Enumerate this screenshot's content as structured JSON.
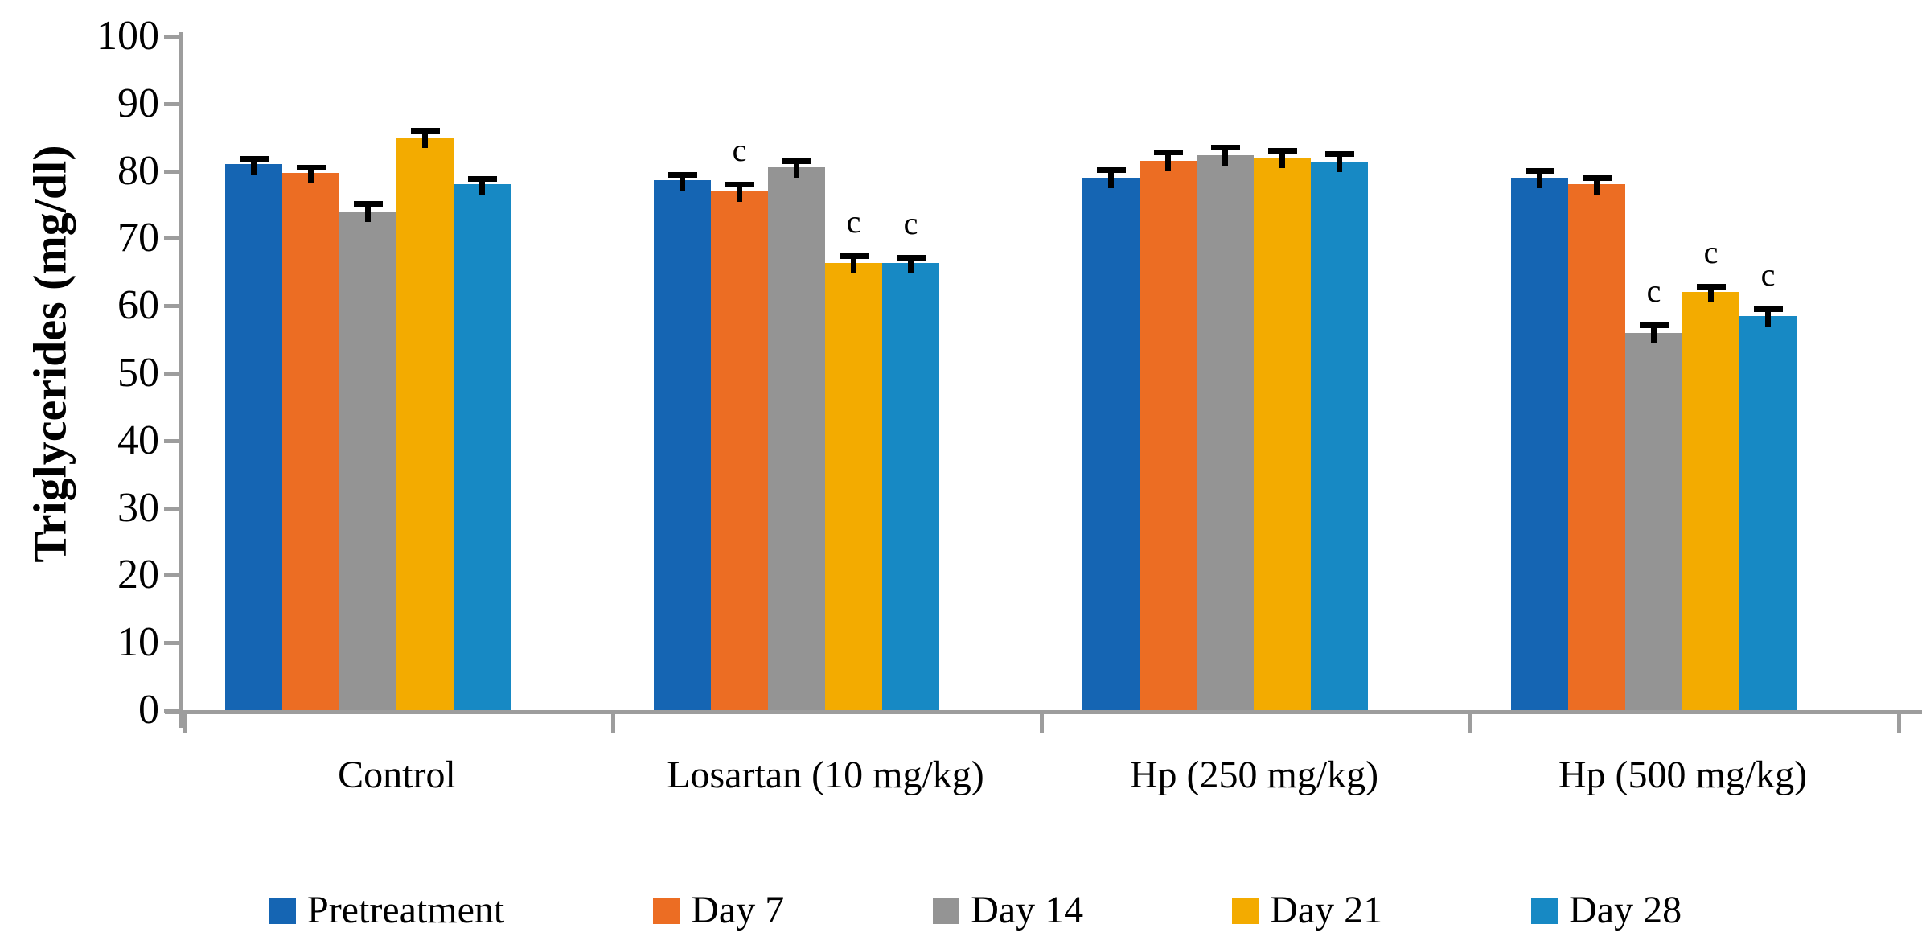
{
  "chart_data": {
    "type": "bar",
    "title": "",
    "ylabel": "Triglycerides (mg/dl)",
    "xlabel": "",
    "ylim": [
      0,
      100
    ],
    "yticks": [
      0,
      10,
      20,
      30,
      40,
      50,
      60,
      70,
      80,
      90,
      100
    ],
    "grid": false,
    "legend_position": "bottom",
    "annotation_symbol": "c",
    "axis_color": "#9d9d9d",
    "error_bar_color": "#000000",
    "categories": [
      "Control",
      "Losartan (10 mg/kg)",
      "Hp (250 mg/kg)",
      "Hp (500 mg/kg)"
    ],
    "series": [
      {
        "name": "Pretreatment",
        "color": "#1565B3",
        "values": [
          81,
          78.6,
          79,
          79
        ],
        "errors": [
          0.9,
          0.9,
          1.2,
          1.1
        ],
        "sig": [
          false,
          false,
          false,
          false
        ]
      },
      {
        "name": "Day 7",
        "color": "#EC6D23",
        "values": [
          79.7,
          77,
          81.5,
          78
        ],
        "errors": [
          0.8,
          1.1,
          1.3,
          1.0
        ],
        "sig": [
          false,
          true,
          false,
          false
        ]
      },
      {
        "name": "Day 14",
        "color": "#949494",
        "values": [
          74,
          80.5,
          82.3,
          56
        ],
        "errors": [
          1.2,
          1.0,
          1.2,
          1.2
        ],
        "sig": [
          false,
          false,
          false,
          true
        ]
      },
      {
        "name": "Day 21",
        "color": "#F3AB00",
        "values": [
          85,
          66.4,
          82,
          62
        ],
        "errors": [
          1.0,
          1.0,
          1.1,
          0.9
        ],
        "sig": [
          false,
          true,
          false,
          true
        ]
      },
      {
        "name": "Day 28",
        "color": "#1789C4",
        "values": [
          78,
          66.4,
          81.4,
          58.5
        ],
        "errors": [
          0.9,
          0.8,
          1.2,
          1.0
        ],
        "sig": [
          false,
          true,
          false,
          true
        ]
      }
    ]
  }
}
